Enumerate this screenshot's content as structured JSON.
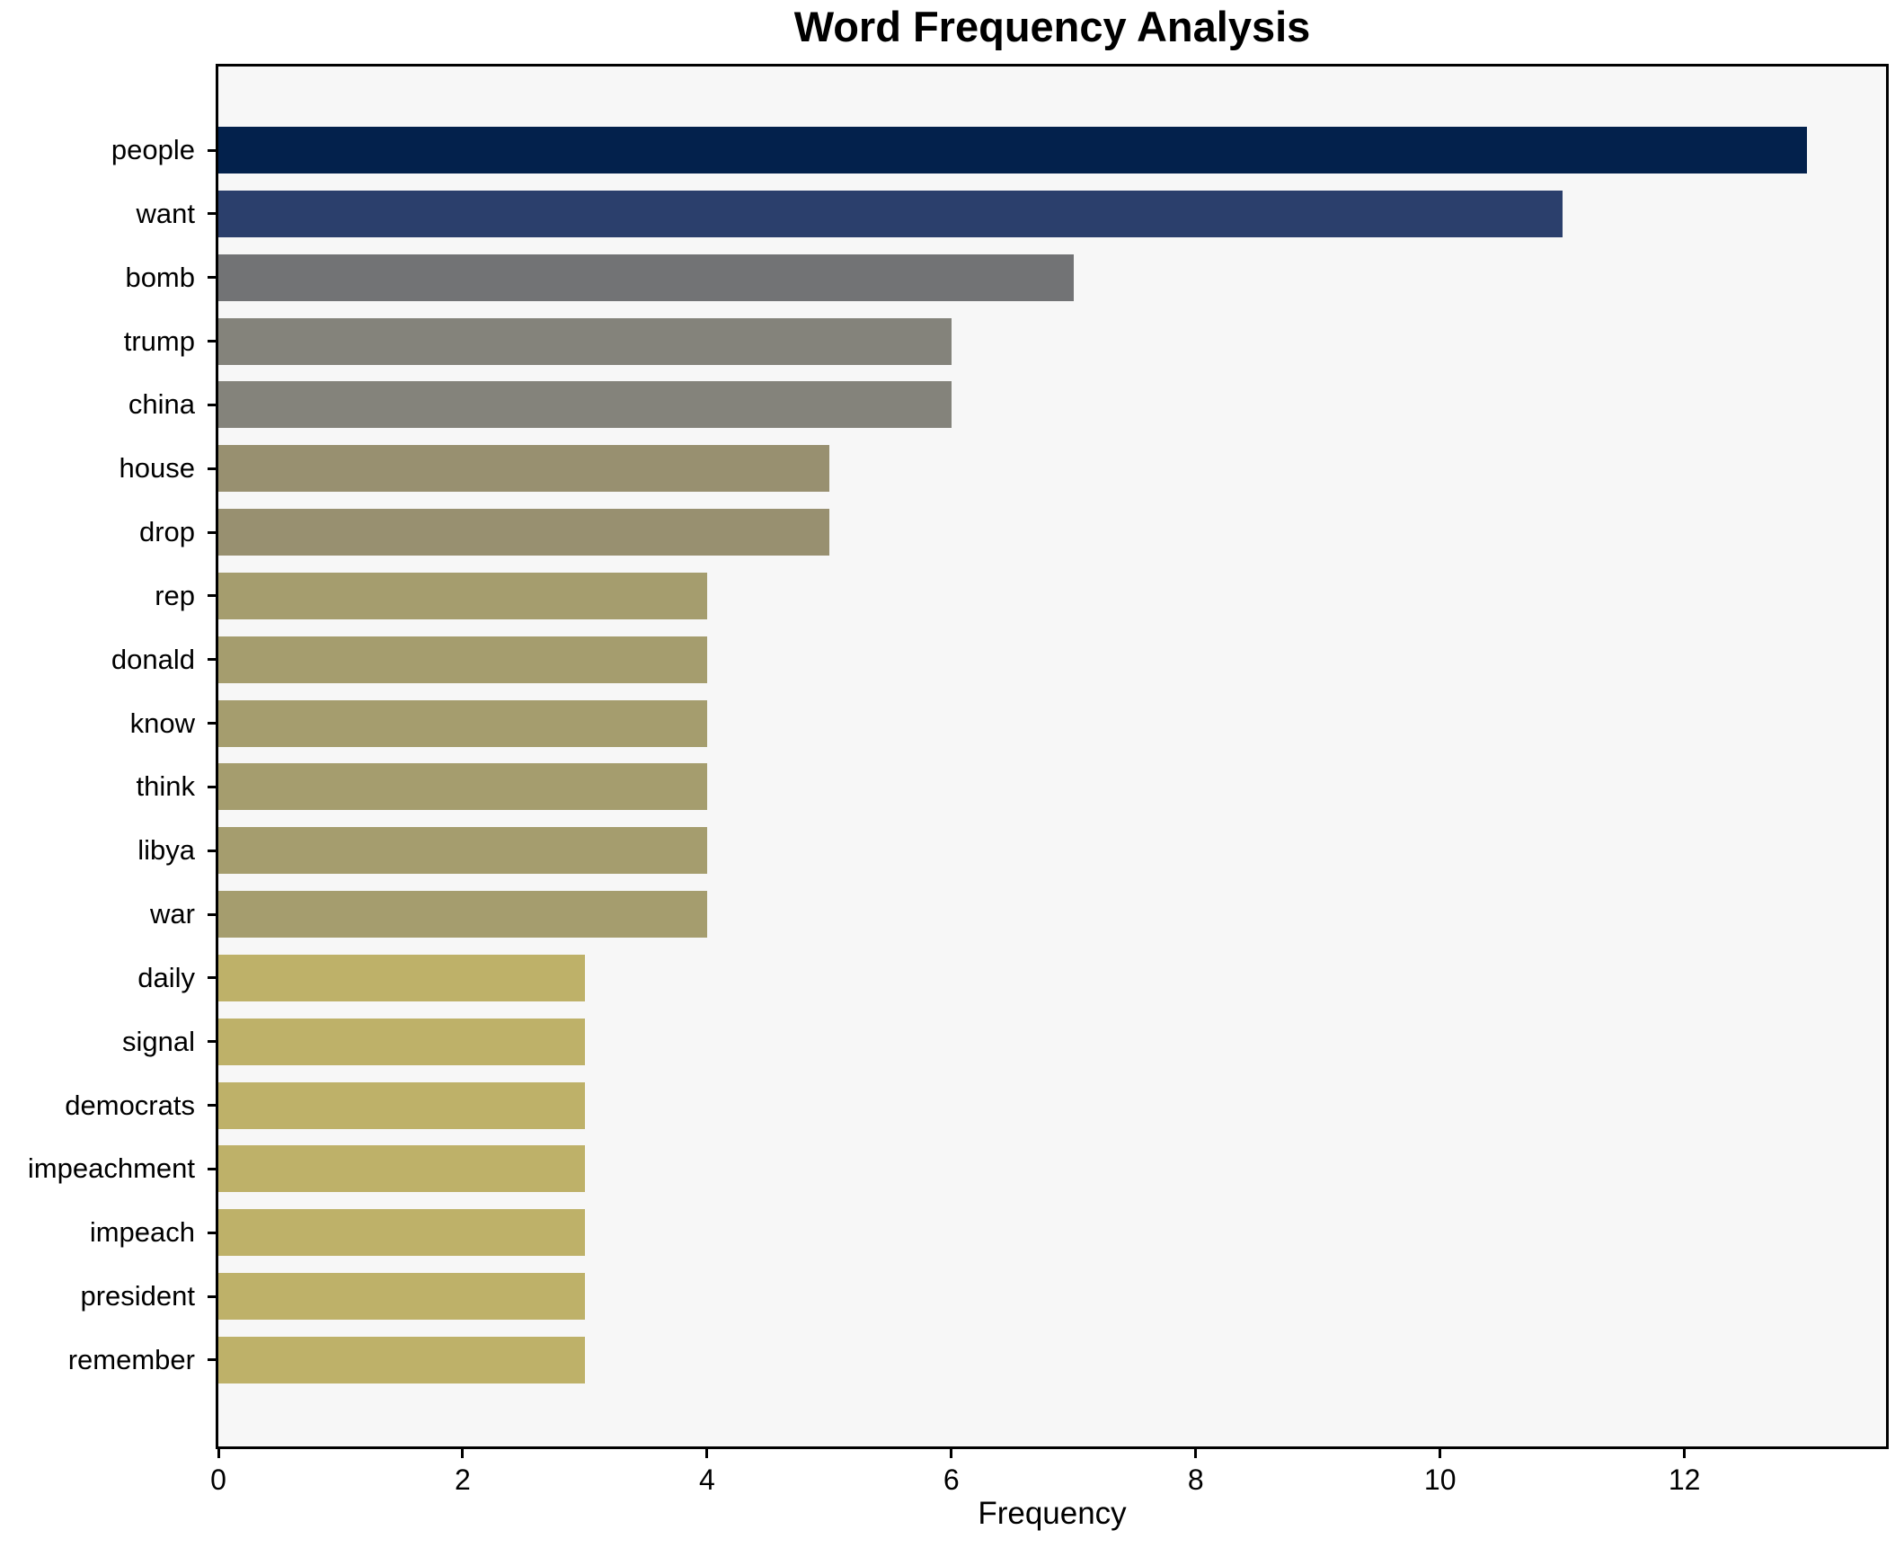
{
  "title": "Word Frequency Analysis",
  "chart_data": {
    "type": "bar",
    "orientation": "horizontal",
    "title": "Word Frequency Analysis",
    "xlabel": "Frequency",
    "ylabel": "",
    "categories": [
      "people",
      "want",
      "bomb",
      "trump",
      "china",
      "house",
      "drop",
      "rep",
      "donald",
      "know",
      "think",
      "libya",
      "war",
      "daily",
      "signal",
      "democrats",
      "impeachment",
      "impeach",
      "president",
      "remember"
    ],
    "values": [
      13,
      11,
      7,
      6,
      6,
      5,
      5,
      4,
      4,
      4,
      4,
      4,
      4,
      3,
      3,
      3,
      3,
      3,
      3,
      3
    ],
    "bar_colors": [
      "#03214c",
      "#2b3f6c",
      "#727375",
      "#84837b",
      "#84837b",
      "#989070",
      "#989070",
      "#a59d6e",
      "#a59d6e",
      "#a59d6e",
      "#a59d6e",
      "#a59d6e",
      "#a59d6e",
      "#beb169",
      "#beb169",
      "#beb169",
      "#beb169",
      "#beb169",
      "#beb169",
      "#beb169"
    ],
    "xlim": [
      0,
      13.65
    ],
    "x_ticks": [
      0,
      2,
      4,
      6,
      8,
      10,
      12
    ],
    "grid": false,
    "legend": null,
    "plot_bg": "#f7f7f7",
    "figure_bg": "#ffffff",
    "spine_color": "#000000",
    "colormap": "cividis"
  }
}
